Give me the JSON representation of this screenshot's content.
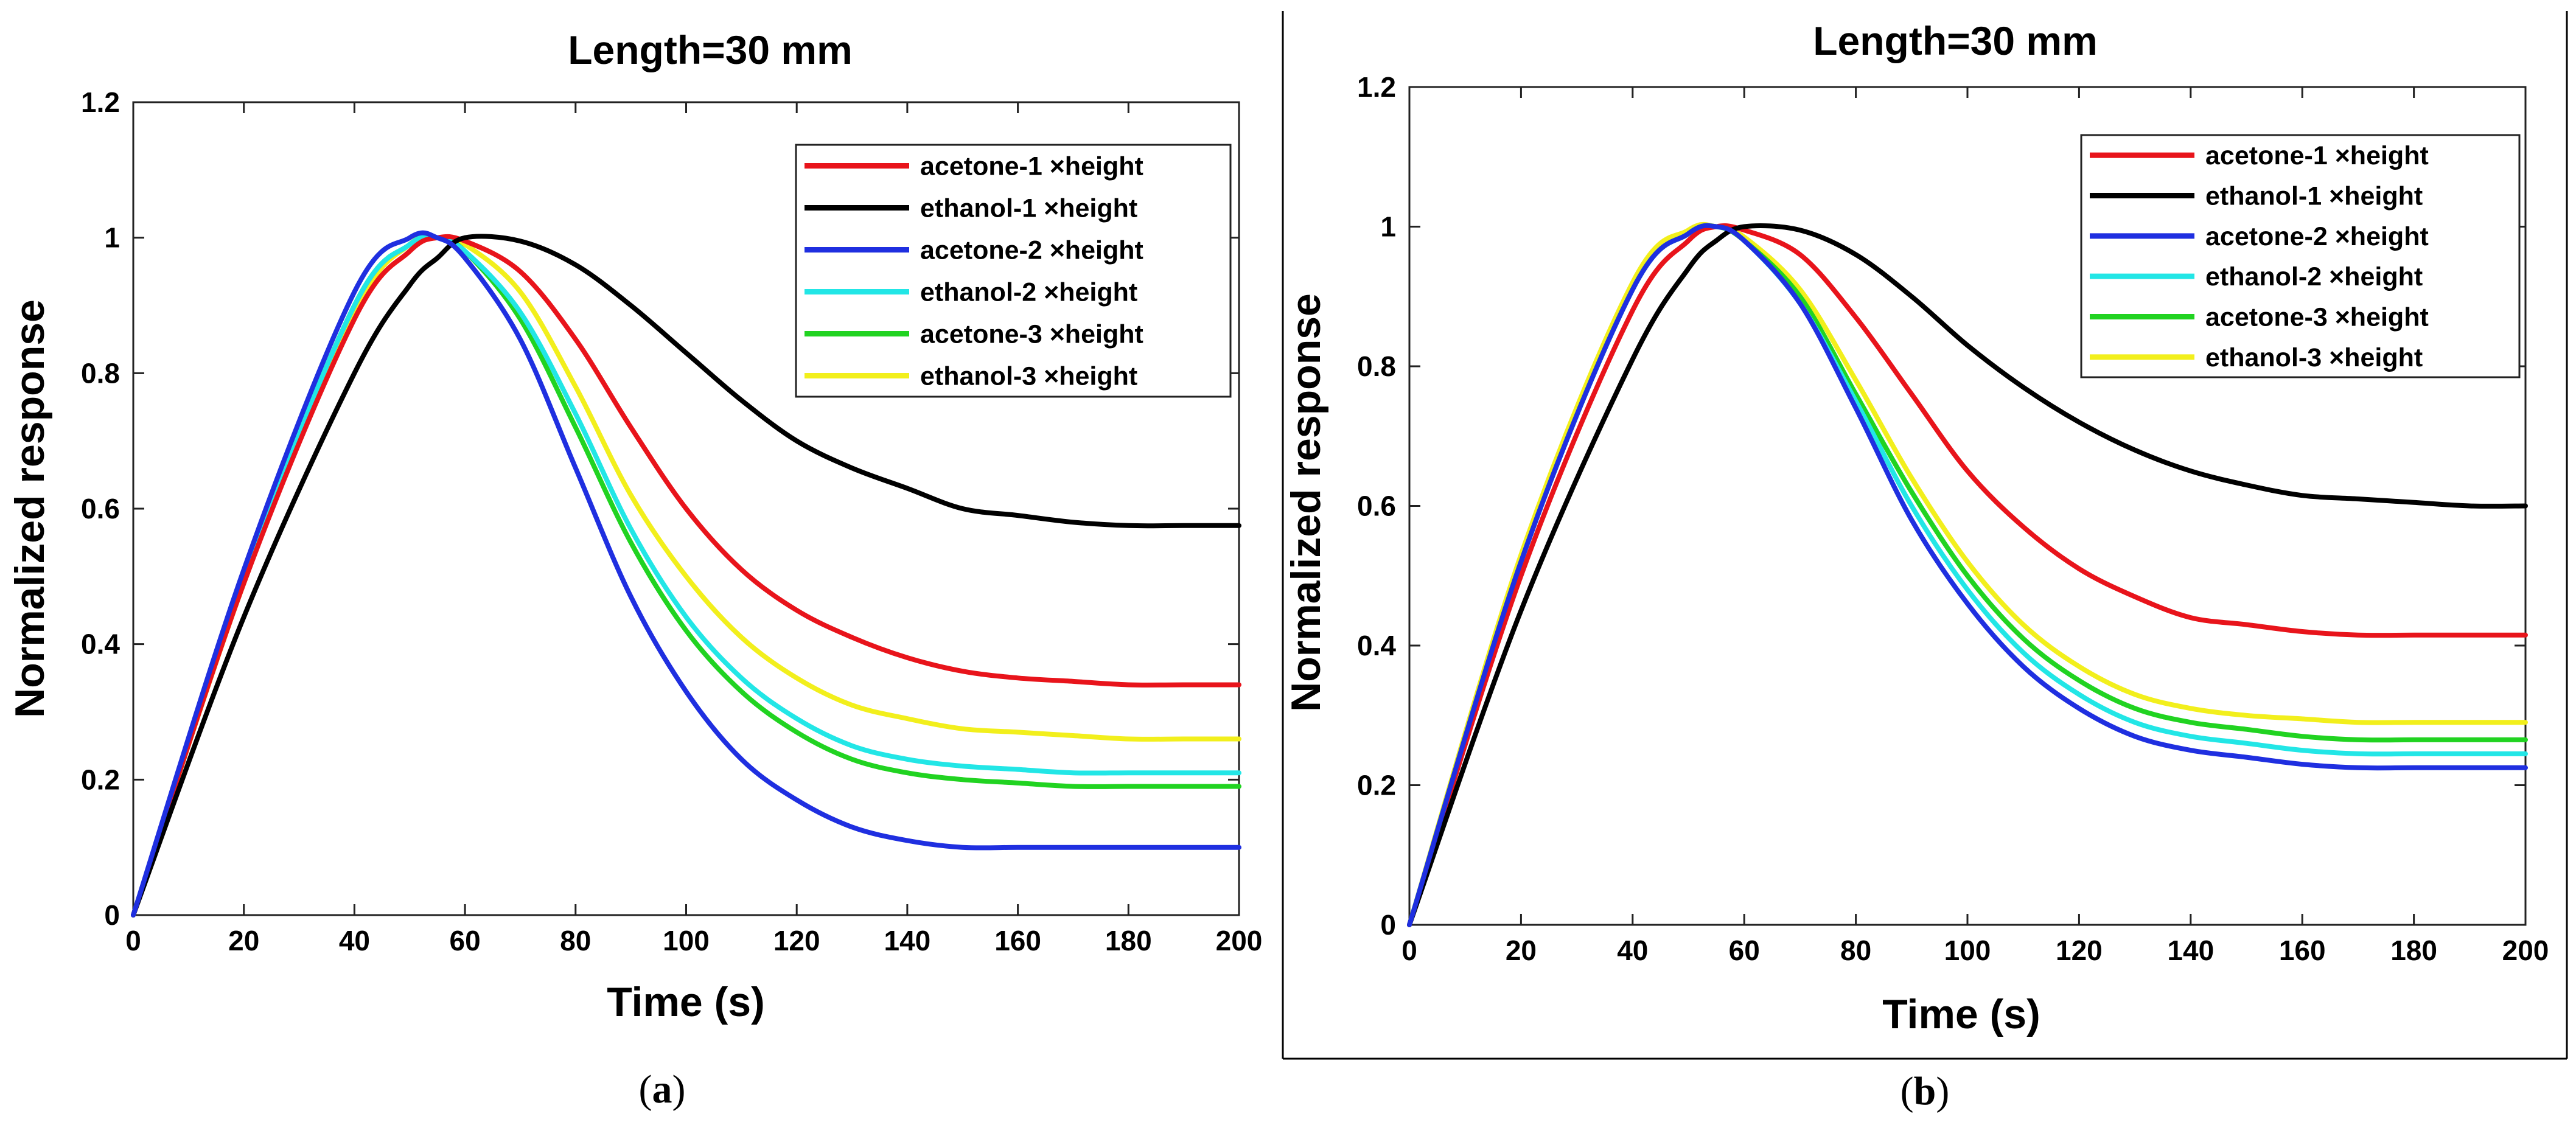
{
  "chart_data": [
    {
      "type": "line",
      "panel": "a",
      "title": "Length=30 mm",
      "xlabel": "Time (s)",
      "ylabel": "Normalized response",
      "xlim": [
        0,
        200
      ],
      "ylim": [
        0,
        1.2
      ],
      "xticks": [
        "0",
        "20",
        "40",
        "60",
        "80",
        "100",
        "120",
        "140",
        "160",
        "180",
        "200"
      ],
      "yticks": [
        "0",
        "0.2",
        "0.4",
        "0.6",
        "0.8",
        "1",
        "1.2"
      ],
      "grid": false,
      "legend_position": "top-right",
      "caption_pre": "(",
      "caption_letter": "a",
      "caption_post": ")",
      "x": [
        0,
        20,
        40,
        50,
        55,
        60,
        70,
        80,
        90,
        100,
        110,
        120,
        130,
        140,
        150,
        160,
        170,
        180,
        190,
        200
      ],
      "series": [
        {
          "name": "acetone-1 ×height",
          "color": "#e8141b",
          "values": [
            0.0,
            0.49,
            0.88,
            0.98,
            1.0,
            0.995,
            0.95,
            0.85,
            0.72,
            0.6,
            0.51,
            0.45,
            0.41,
            0.38,
            0.36,
            0.35,
            0.345,
            0.34,
            0.34,
            0.34
          ]
        },
        {
          "name": "ethanol-1 ×height",
          "color": "#000000",
          "values": [
            0.0,
            0.44,
            0.8,
            0.93,
            0.97,
            1.0,
            0.995,
            0.96,
            0.9,
            0.83,
            0.76,
            0.7,
            0.66,
            0.63,
            0.6,
            0.59,
            0.58,
            0.575,
            0.575,
            0.575
          ]
        },
        {
          "name": "acetone-2 ×height",
          "color": "#1f2fe0",
          "values": [
            0.0,
            0.51,
            0.92,
            1.0,
            1.0,
            0.97,
            0.85,
            0.66,
            0.47,
            0.33,
            0.23,
            0.17,
            0.13,
            0.11,
            0.1,
            0.1,
            0.1,
            0.1,
            0.1,
            0.1
          ]
        },
        {
          "name": "ethanol-2 ×height",
          "color": "#22e6e6",
          "values": [
            0.0,
            0.5,
            0.9,
            0.99,
            1.0,
            0.98,
            0.89,
            0.74,
            0.57,
            0.44,
            0.35,
            0.29,
            0.25,
            0.23,
            0.22,
            0.215,
            0.21,
            0.21,
            0.21,
            0.21
          ]
        },
        {
          "name": "acetone-3 ×height",
          "color": "#21d321",
          "values": [
            0.0,
            0.5,
            0.9,
            0.99,
            1.0,
            0.98,
            0.88,
            0.72,
            0.55,
            0.42,
            0.33,
            0.27,
            0.23,
            0.21,
            0.2,
            0.195,
            0.19,
            0.19,
            0.19,
            0.19
          ]
        },
        {
          "name": "ethanol-3 ×height",
          "color": "#f2ef1c",
          "values": [
            0.0,
            0.49,
            0.89,
            0.99,
            1.0,
            0.99,
            0.92,
            0.78,
            0.62,
            0.5,
            0.41,
            0.35,
            0.31,
            0.29,
            0.275,
            0.27,
            0.265,
            0.26,
            0.26,
            0.26
          ]
        }
      ]
    },
    {
      "type": "line",
      "panel": "b",
      "title": "Length=30 mm",
      "xlabel": "Time (s)",
      "ylabel": "Normalized response",
      "xlim": [
        0,
        200
      ],
      "ylim": [
        0,
        1.2
      ],
      "xticks": [
        "0",
        "20",
        "40",
        "60",
        "80",
        "100",
        "120",
        "140",
        "160",
        "180",
        "200"
      ],
      "yticks": [
        "0",
        "0.2",
        "0.4",
        "0.6",
        "0.8",
        "1",
        "1.2"
      ],
      "grid": false,
      "legend_position": "top-right",
      "caption_pre": "(",
      "caption_letter": "b",
      "caption_post": ")",
      "x": [
        0,
        20,
        40,
        50,
        55,
        60,
        70,
        80,
        90,
        100,
        110,
        120,
        130,
        140,
        150,
        160,
        170,
        180,
        190,
        200
      ],
      "series": [
        {
          "name": "acetone-1 ×height",
          "color": "#e8141b",
          "values": [
            0.0,
            0.5,
            0.88,
            0.98,
            1.0,
            0.995,
            0.96,
            0.87,
            0.76,
            0.65,
            0.57,
            0.51,
            0.47,
            0.44,
            0.43,
            0.42,
            0.415,
            0.415,
            0.415,
            0.415
          ]
        },
        {
          "name": "ethanol-1 ×height",
          "color": "#000000",
          "values": [
            0.0,
            0.45,
            0.81,
            0.94,
            0.98,
            1.0,
            0.995,
            0.96,
            0.9,
            0.83,
            0.77,
            0.72,
            0.68,
            0.65,
            0.63,
            0.615,
            0.61,
            0.605,
            0.6,
            0.6
          ]
        },
        {
          "name": "acetone-2 ×height",
          "color": "#1f2fe0",
          "values": [
            0.0,
            0.52,
            0.91,
            0.99,
            1.0,
            0.98,
            0.89,
            0.74,
            0.58,
            0.46,
            0.37,
            0.31,
            0.27,
            0.25,
            0.24,
            0.23,
            0.225,
            0.225,
            0.225,
            0.225
          ]
        },
        {
          "name": "ethanol-2 ×height",
          "color": "#22e6e6",
          "values": [
            0.0,
            0.52,
            0.91,
            0.99,
            1.0,
            0.98,
            0.89,
            0.75,
            0.6,
            0.48,
            0.39,
            0.33,
            0.29,
            0.27,
            0.26,
            0.25,
            0.245,
            0.245,
            0.245,
            0.245
          ]
        },
        {
          "name": "acetone-3 ×height",
          "color": "#21d321",
          "values": [
            0.0,
            0.52,
            0.91,
            0.99,
            1.0,
            0.98,
            0.9,
            0.76,
            0.62,
            0.5,
            0.41,
            0.35,
            0.31,
            0.29,
            0.28,
            0.27,
            0.265,
            0.265,
            0.265,
            0.265
          ]
        },
        {
          "name": "ethanol-3 ×height",
          "color": "#f2ef1c",
          "values": [
            0.0,
            0.53,
            0.92,
            0.995,
            1.0,
            0.985,
            0.91,
            0.78,
            0.64,
            0.52,
            0.43,
            0.37,
            0.33,
            0.31,
            0.3,
            0.295,
            0.29,
            0.29,
            0.29,
            0.29
          ]
        }
      ]
    }
  ]
}
